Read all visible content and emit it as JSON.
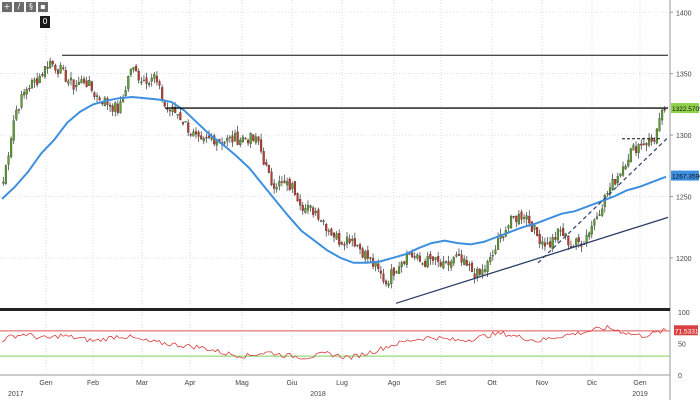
{
  "toolbar": {
    "buttons": [
      {
        "icon": "plus-icon",
        "glyph": "+"
      },
      {
        "icon": "pencil-icon",
        "glyph": "/"
      },
      {
        "icon": "grid-icon",
        "glyph": "§"
      },
      {
        "icon": "trash-icon",
        "glyph": "▪"
      }
    ],
    "zero_label": "0"
  },
  "chart_data": [
    {
      "type": "candlestick",
      "title": "",
      "x_ticks": [
        "Gen",
        "Feb",
        "Mar",
        "Apr",
        "Mag",
        "Giu",
        "Lug",
        "Ago",
        "Set",
        "Ott",
        "Nov",
        "Dic",
        "Gen"
      ],
      "x_year_labels": [
        "2017",
        "2018",
        "2019"
      ],
      "ylim": [
        1160,
        1410
      ],
      "y_ticks": [
        "1400",
        "1350",
        "1300",
        "1250",
        "1200"
      ],
      "y_tick_values": [
        1400,
        1350,
        1300,
        1250,
        1200
      ],
      "grid": true,
      "price_series_anchors": {
        "x_weeks": [
          0,
          1,
          2,
          3,
          4,
          5,
          6,
          7,
          8,
          9,
          10,
          11,
          12,
          13,
          14,
          15,
          16,
          17,
          18,
          19,
          20,
          21,
          22,
          23,
          24,
          25,
          26,
          27,
          28,
          29,
          30,
          31,
          32,
          33,
          34,
          35,
          36,
          37,
          38,
          39,
          40,
          41,
          42,
          43,
          44,
          45,
          46,
          47,
          48,
          49,
          50,
          51,
          52,
          53,
          54,
          55,
          56,
          57
        ],
        "close": [
          1262,
          1318,
          1338,
          1346,
          1360,
          1352,
          1340,
          1345,
          1332,
          1326,
          1320,
          1355,
          1345,
          1348,
          1322,
          1318,
          1305,
          1292,
          1298,
          1295,
          1297,
          1298,
          1294,
          1262,
          1260,
          1257,
          1240,
          1238,
          1224,
          1214,
          1217,
          1205,
          1193,
          1180,
          1195,
          1204,
          1196,
          1198,
          1192,
          1200,
          1192,
          1185,
          1198,
          1220,
          1232,
          1236,
          1218,
          1210,
          1222,
          1210,
          1214,
          1232,
          1252,
          1268,
          1286,
          1294,
          1295,
          1322
        ]
      },
      "moving_average": {
        "name": "",
        "values": [
          1248,
          1258,
          1270,
          1285,
          1296,
          1310,
          1319,
          1325,
          1328,
          1330,
          1331,
          1330,
          1329,
          1327,
          1320,
          1310,
          1300,
          1292,
          1283,
          1273,
          1260,
          1247,
          1234,
          1222,
          1214,
          1206,
          1200,
          1196,
          1196,
          1197,
          1200,
          1203,
          1208,
          1212,
          1214,
          1212,
          1211,
          1213,
          1217,
          1221,
          1225,
          1228,
          1232,
          1236,
          1238,
          1242,
          1246,
          1250,
          1255,
          1258,
          1262,
          1266
        ]
      },
      "resistance_lines": [
        {
          "level": 1365,
          "from_month": "Gen",
          "to_month": "end"
        },
        {
          "level": 1322,
          "from_month": "Mar",
          "to_month": "end"
        },
        {
          "level": 1297,
          "from_month": "Dic",
          "to_month": "Gen",
          "style": "dashed"
        }
      ],
      "trendlines": [
        {
          "from": [
            "Ago",
            1163
          ],
          "to": [
            "end",
            1233
          ],
          "style": "solid"
        },
        {
          "from": [
            "Nov",
            1196
          ],
          "to": [
            "end",
            1298
          ],
          "style": "dashed"
        }
      ],
      "price_labels": [
        {
          "text": "1322.5705",
          "color": "#8fd24a"
        },
        {
          "text": "1267.3596",
          "color": "#3d8fe0"
        }
      ]
    },
    {
      "type": "line",
      "title": "",
      "ylim": [
        0,
        100
      ],
      "y_ticks": [
        "100",
        "50",
        "0"
      ],
      "y_tick_values": [
        100,
        50,
        0
      ],
      "upper_line": 70,
      "lower_line": 30,
      "series": [
        {
          "name": "",
          "color": "#d94040",
          "values": [
            56,
            62,
            65,
            60,
            58,
            63,
            60,
            57,
            54,
            58,
            62,
            60,
            55,
            52,
            50,
            48,
            46,
            44,
            40,
            35,
            32,
            30,
            34,
            36,
            32,
            30,
            28,
            31,
            34,
            30,
            28,
            33,
            38,
            45,
            50,
            55,
            58,
            60,
            57,
            55,
            56,
            60,
            64,
            66,
            62,
            58,
            54,
            58,
            62,
            65,
            68,
            72,
            75,
            70,
            65,
            62,
            66,
            71
          ]
        }
      ],
      "price_label": {
        "text": "71.5331",
        "color": "#d94040"
      }
    }
  ]
}
